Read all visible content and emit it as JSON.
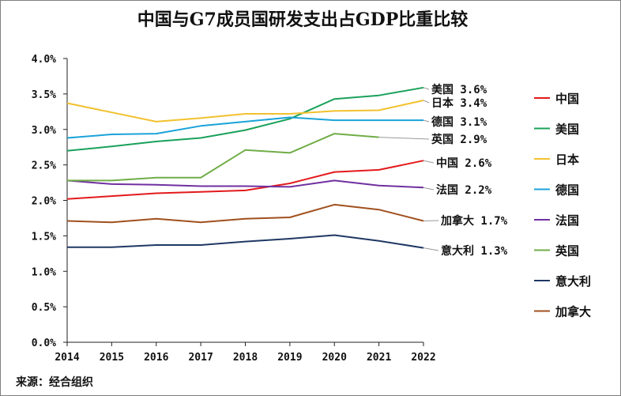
{
  "chart_data": {
    "type": "line",
    "title": "中国与G7成员国研发支出占GDP比重比较",
    "xlabel": "",
    "ylabel": "",
    "ylim": [
      0,
      4
    ],
    "y_ticks": [
      "0.0%",
      "0.5%",
      "1.0%",
      "1.5%",
      "2.0%",
      "2.5%",
      "3.0%",
      "3.5%",
      "4.0%"
    ],
    "x": [
      "2014",
      "2015",
      "2016",
      "2017",
      "2018",
      "2019",
      "2020",
      "2021",
      "2022"
    ],
    "series": [
      {
        "name": "中国",
        "color": "#e31a1c",
        "end_label": "中国 2.6%",
        "values": [
          2.02,
          2.06,
          2.1,
          2.12,
          2.14,
          2.24,
          2.4,
          2.43,
          2.56
        ]
      },
      {
        "name": "美国",
        "color": "#1aa15a",
        "end_label": "美国 3.6%",
        "values": [
          2.7,
          2.76,
          2.83,
          2.88,
          2.99,
          3.15,
          3.43,
          3.48,
          3.59
        ]
      },
      {
        "name": "日本",
        "color": "#f2c12e",
        "end_label": "日本 3.4%",
        "values": [
          3.37,
          3.24,
          3.11,
          3.16,
          3.22,
          3.22,
          3.26,
          3.27,
          3.41
        ]
      },
      {
        "name": "德国",
        "color": "#1aa3d9",
        "end_label": "德国 3.1%",
        "values": [
          2.88,
          2.93,
          2.94,
          3.05,
          3.11,
          3.17,
          3.13,
          3.13,
          3.13
        ]
      },
      {
        "name": "法国",
        "color": "#7030a0",
        "end_label": "法国 2.2%",
        "values": [
          2.28,
          2.23,
          2.22,
          2.2,
          2.2,
          2.19,
          2.28,
          2.21,
          2.18
        ]
      },
      {
        "name": "英国",
        "color": "#70ad47",
        "end_label": "英国 2.9%",
        "values": [
          2.28,
          2.28,
          2.32,
          2.32,
          2.71,
          2.67,
          2.94,
          2.89,
          null
        ]
      },
      {
        "name": "意大利",
        "color": "#1f3864",
        "end_label": "意大利 1.3%",
        "values": [
          1.34,
          1.34,
          1.37,
          1.37,
          1.42,
          1.46,
          1.51,
          1.43,
          1.33
        ]
      },
      {
        "name": "加拿大",
        "color": "#a0501e",
        "end_label": "加拿大 1.7%",
        "values": [
          1.71,
          1.69,
          1.74,
          1.69,
          1.74,
          1.76,
          1.94,
          1.87,
          1.71
        ]
      }
    ]
  },
  "source": "来源：经合组织"
}
